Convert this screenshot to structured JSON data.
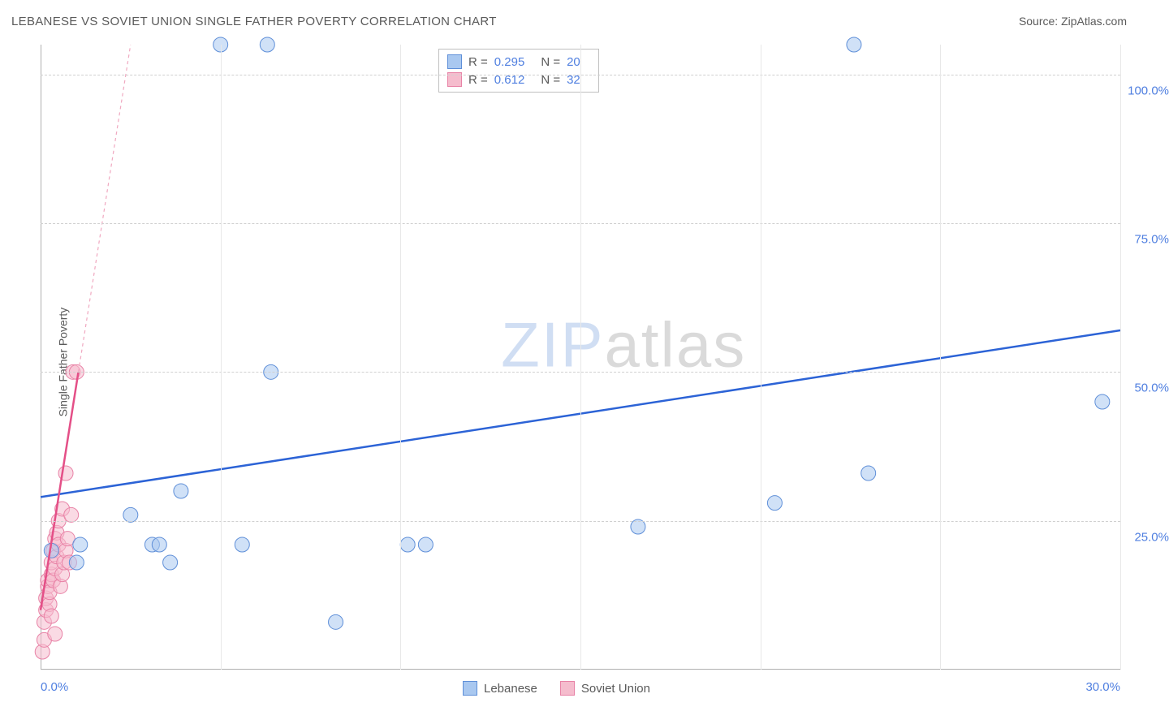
{
  "title": "LEBANESE VS SOVIET UNION SINGLE FATHER POVERTY CORRELATION CHART",
  "source": "Source: ZipAtlas.com",
  "y_axis_label": "Single Father Poverty",
  "watermark": {
    "zip": "ZIP",
    "atlas": "atlas"
  },
  "chart": {
    "type": "scatter",
    "background_color": "#ffffff",
    "grid_color_h": "#d0d0d0",
    "grid_color_v": "#e8e8e8",
    "axis_color": "#b0b0b0",
    "tick_label_color": "#4f7fe0",
    "tick_fontsize": 15,
    "text_color": "#5a5a5a",
    "xlim": [
      0,
      30
    ],
    "ylim": [
      0,
      105
    ],
    "x_ticks": [
      0,
      5,
      10,
      15,
      20,
      25,
      30
    ],
    "x_tick_labels_shown": {
      "0": "0.0%",
      "30": "30.0%"
    },
    "y_ticks": [
      25,
      50,
      75,
      100
    ],
    "y_tick_labels": {
      "25": "25.0%",
      "50": "50.0%",
      "75": "75.0%",
      "100": "100.0%"
    },
    "marker_radius": 9,
    "marker_opacity": 0.55,
    "series": [
      {
        "name": "Lebanese",
        "color_fill": "#a9c8f0",
        "color_stroke": "#5f8fd8",
        "points": [
          [
            0.3,
            20
          ],
          [
            1.0,
            18
          ],
          [
            1.1,
            21
          ],
          [
            2.5,
            26
          ],
          [
            3.1,
            21
          ],
          [
            3.3,
            21
          ],
          [
            3.9,
            30
          ],
          [
            3.6,
            18
          ],
          [
            5.0,
            105
          ],
          [
            5.6,
            21
          ],
          [
            6.3,
            105
          ],
          [
            6.4,
            50
          ],
          [
            8.2,
            8
          ],
          [
            10.2,
            21
          ],
          [
            10.7,
            21
          ],
          [
            16.6,
            24
          ],
          [
            20.4,
            28
          ],
          [
            22.6,
            105
          ],
          [
            23.0,
            33
          ],
          [
            29.5,
            45
          ]
        ],
        "trend": {
          "x1": 0,
          "y1": 29,
          "x2": 30,
          "y2": 57,
          "color": "#2c63d6",
          "width": 2.5,
          "dash": "none"
        },
        "trend_extrap": null,
        "R": 0.295,
        "N": 20
      },
      {
        "name": "Soviet Union",
        "color_fill": "#f5bccd",
        "color_stroke": "#e882a6",
        "points": [
          [
            0.05,
            3
          ],
          [
            0.1,
            5
          ],
          [
            0.1,
            8
          ],
          [
            0.15,
            10
          ],
          [
            0.15,
            12
          ],
          [
            0.2,
            14
          ],
          [
            0.2,
            15
          ],
          [
            0.25,
            11
          ],
          [
            0.25,
            13
          ],
          [
            0.3,
            9
          ],
          [
            0.3,
            16
          ],
          [
            0.3,
            18
          ],
          [
            0.35,
            20
          ],
          [
            0.35,
            15
          ],
          [
            0.4,
            22
          ],
          [
            0.4,
            17
          ],
          [
            0.45,
            23
          ],
          [
            0.45,
            19
          ],
          [
            0.5,
            25
          ],
          [
            0.5,
            21
          ],
          [
            0.55,
            14
          ],
          [
            0.6,
            16
          ],
          [
            0.6,
            27
          ],
          [
            0.65,
            18
          ],
          [
            0.7,
            20
          ],
          [
            0.7,
            33
          ],
          [
            0.75,
            22
          ],
          [
            0.8,
            18
          ],
          [
            0.85,
            26
          ],
          [
            0.9,
            50
          ],
          [
            1.0,
            50
          ],
          [
            0.4,
            6
          ]
        ],
        "trend": {
          "x1": 0,
          "y1": 10,
          "x2": 1.05,
          "y2": 50,
          "color": "#e44f87",
          "width": 2.5,
          "dash": "none"
        },
        "trend_extrap": {
          "x1": 1.05,
          "y1": 50,
          "x2": 2.5,
          "y2": 105,
          "color": "#f0a8c0",
          "width": 1.2,
          "dash": "4,4"
        },
        "R": 0.612,
        "N": 32
      }
    ]
  },
  "stats_box": {
    "border_color": "#c0c0c0",
    "bg": "#ffffff",
    "rows": [
      {
        "swatch_fill": "#a9c8f0",
        "swatch_stroke": "#5f8fd8",
        "R_label": "R =",
        "R_val": "0.295",
        "N_label": "N =",
        "N_val": "20"
      },
      {
        "swatch_fill": "#f5bccd",
        "swatch_stroke": "#e882a6",
        "R_label": "R =",
        "R_val": "0.612",
        "N_label": "N =",
        "N_val": "32"
      }
    ]
  },
  "bottom_legend": [
    {
      "swatch_fill": "#a9c8f0",
      "swatch_stroke": "#5f8fd8",
      "label": "Lebanese"
    },
    {
      "swatch_fill": "#f5bccd",
      "swatch_stroke": "#e882a6",
      "label": "Soviet Union"
    }
  ]
}
